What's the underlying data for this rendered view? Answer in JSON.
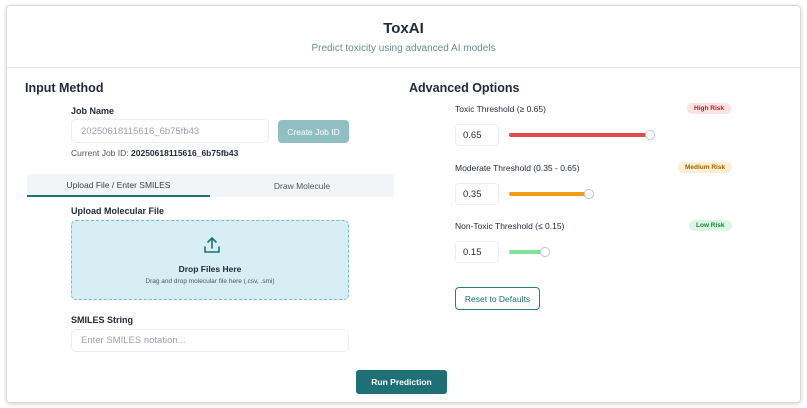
{
  "header": {
    "title": "ToxAI",
    "subtitle": "Predict toxicity using advanced AI models"
  },
  "input_method": {
    "section_title": "Input Method",
    "job_name_label": "Job Name",
    "job_name_value": "20250618115616_6b75fb43",
    "create_job_button": "Create Job ID",
    "current_job_prefix": "Current Job ID:",
    "current_job_id": "20250618115616_6b75fb43",
    "tabs": [
      {
        "label": "Upload File / Enter SMILES",
        "active": true
      },
      {
        "label": "Draw Molecule",
        "active": false
      }
    ],
    "upload_label": "Upload Molecular File",
    "dropzone_title": "Drop Files Here",
    "dropzone_hint": "Drag and drop molecular file here (.csv, .smi)",
    "smiles_label": "SMILES String",
    "smiles_placeholder": "Enter SMILES notation...",
    "upload_icon": "upload-icon"
  },
  "advanced_options": {
    "section_title": "Advanced Options",
    "thresholds": [
      {
        "label": "Toxic Threshold (≥ 0.65)",
        "badge": "High Risk",
        "value": "0.65",
        "slider_fraction": 0.97,
        "color": "#e24b4b",
        "badge_bg": "#fde2e2",
        "badge_fg": "#b91c1c"
      },
      {
        "label": "Moderate Threshold (0.35 - 0.65)",
        "badge": "Medium Risk",
        "value": "0.35",
        "slider_fraction": 0.55,
        "color": "#f29d17",
        "badge_bg": "#fdf0d2",
        "badge_fg": "#a16207"
      },
      {
        "label": "Non-Toxic Threshold (≤ 0.15)",
        "badge": "Low Risk",
        "value": "0.15",
        "slider_fraction": 0.25,
        "color": "#7de39b",
        "badge_bg": "#dcf7e4",
        "badge_fg": "#15803d"
      }
    ],
    "reset_button": "Reset to Defaults"
  },
  "run_button": "Run Prediction"
}
